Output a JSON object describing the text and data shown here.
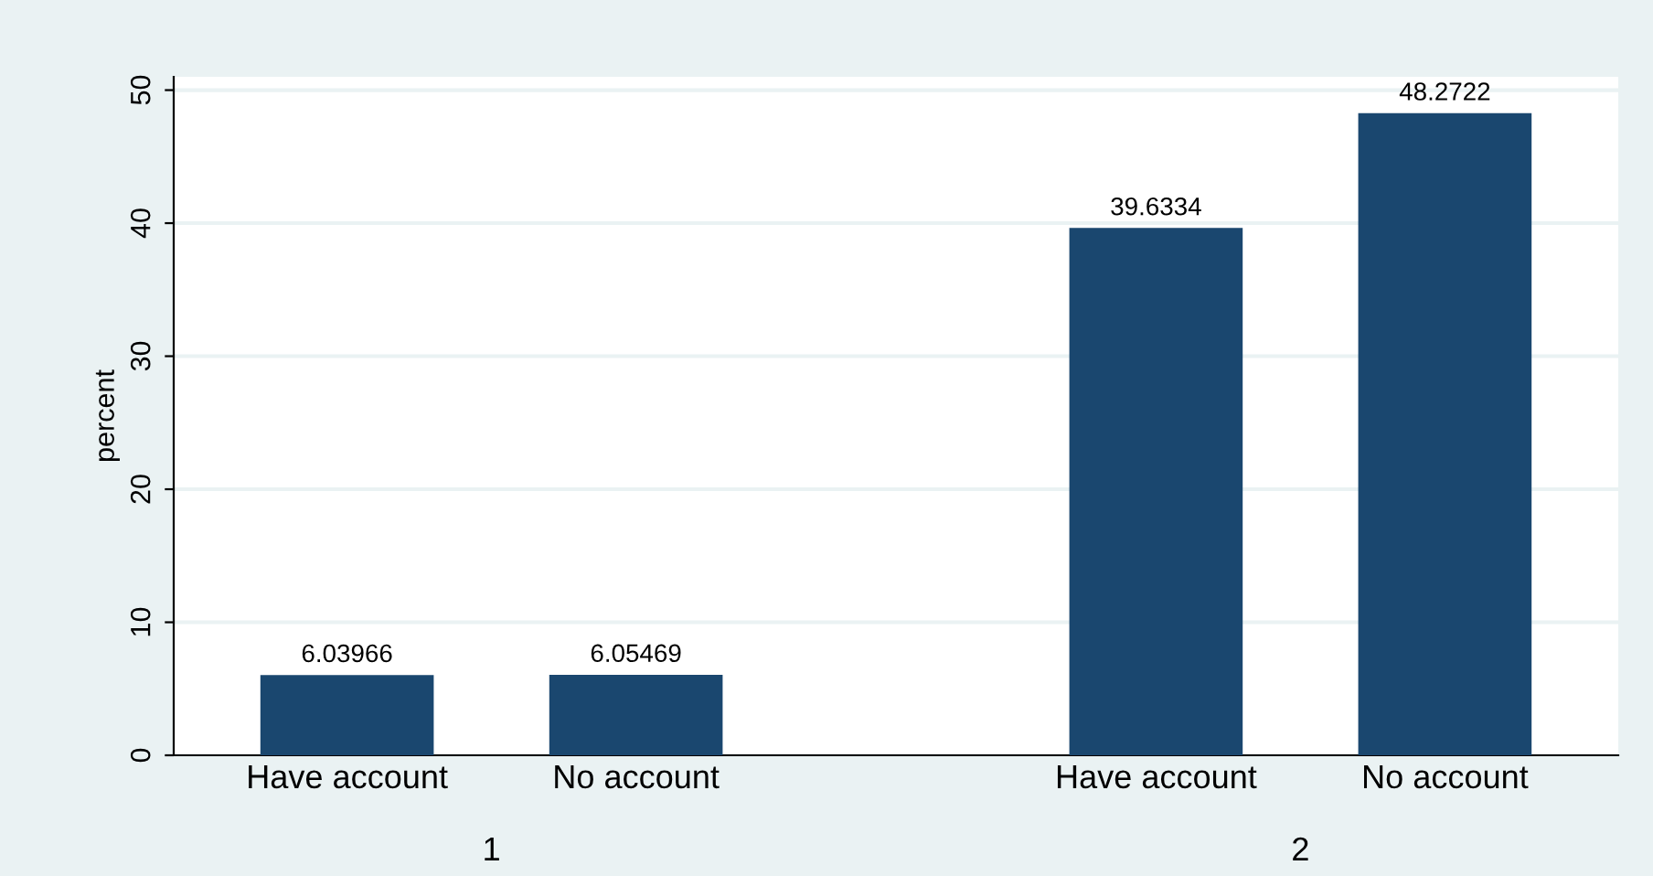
{
  "chart_data": {
    "type": "bar",
    "ylabel": "percent",
    "categories": [
      "Have account",
      "No account",
      "Have account",
      "No account"
    ],
    "values": [
      6.03966,
      6.05469,
      39.6334,
      48.2722
    ],
    "color": "#1a476f",
    "data_labels": true,
    "annotations": [
      "1",
      "2"
    ],
    "ylim": [
      0,
      51
    ],
    "yticks": [
      0,
      10,
      20,
      30,
      40,
      50
    ],
    "grid": "y",
    "legend": false
  }
}
